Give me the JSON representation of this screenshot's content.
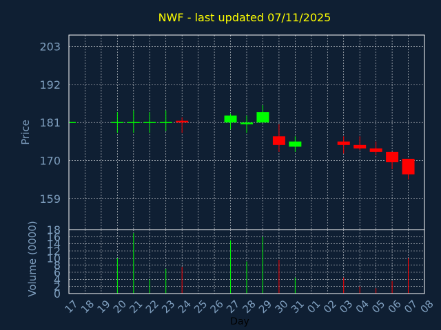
{
  "colors": {
    "background": "#0f1f33",
    "title": "#ffff00",
    "axis_text": "#7f9fbf",
    "grid": "#ffffff",
    "up": "#00ff00",
    "down": "#ff0000"
  },
  "chart_data": [
    {
      "type": "candlestick",
      "title": "NWF - last updated 07/11/2025",
      "ylabel": "Price",
      "ylim": [
        150,
        206.3
      ],
      "yticks": [
        159,
        170,
        181,
        192,
        203
      ],
      "grid": true,
      "x": [
        "17",
        "18",
        "19",
        "20",
        "21",
        "22",
        "23",
        "24",
        "25",
        "26",
        "27",
        "28",
        "29",
        "30",
        "31",
        "01",
        "02",
        "03",
        "04",
        "05",
        "06",
        "07",
        "08"
      ],
      "candles": [
        {
          "x": "17",
          "open": 181.0,
          "high": 181.0,
          "low": 181.0,
          "close": 181.0
        },
        {
          "x": "20",
          "open": 181.0,
          "high": 184.0,
          "low": 178.0,
          "close": 181.0
        },
        {
          "x": "21",
          "open": 181.0,
          "high": 184.5,
          "low": 178.0,
          "close": 181.0
        },
        {
          "x": "22",
          "open": 181.0,
          "high": 184.0,
          "low": 178.0,
          "close": 181.0
        },
        {
          "x": "23",
          "open": 181.0,
          "high": 184.5,
          "low": 178.5,
          "close": 181.0
        },
        {
          "x": "24",
          "open": 181.5,
          "high": 182.5,
          "low": 178.0,
          "close": 181.0
        },
        {
          "x": "27",
          "open": 181.0,
          "high": 183.5,
          "low": 179.0,
          "close": 183.0
        },
        {
          "x": "28",
          "open": 180.5,
          "high": 183.0,
          "low": 178.0,
          "close": 181.0
        },
        {
          "x": "29",
          "open": 181.0,
          "high": 186.0,
          "low": 181.0,
          "close": 184.0
        },
        {
          "x": "30",
          "open": 177.0,
          "high": 180.5,
          "low": 172.5,
          "close": 174.5
        },
        {
          "x": "31",
          "open": 174.0,
          "high": 177.0,
          "low": 172.5,
          "close": 175.5
        },
        {
          "x": "03",
          "open": 175.5,
          "high": 177.0,
          "low": 172.0,
          "close": 174.5
        },
        {
          "x": "04",
          "open": 174.5,
          "high": 177.0,
          "low": 173.0,
          "close": 173.5
        },
        {
          "x": "05",
          "open": 173.5,
          "high": 175.5,
          "low": 171.5,
          "close": 172.5
        },
        {
          "x": "06",
          "open": 172.5,
          "high": 172.5,
          "low": 167.5,
          "close": 169.5
        },
        {
          "x": "07",
          "open": 170.5,
          "high": 170.5,
          "low": 164.5,
          "close": 166.0
        }
      ]
    },
    {
      "type": "bar",
      "xlabel": "Day",
      "ylabel": "Volume (0000)",
      "ylim": [
        0,
        18
      ],
      "yticks": [
        0,
        2,
        4,
        6,
        8,
        10,
        12,
        14,
        16,
        18
      ],
      "grid": true,
      "x": [
        "17",
        "18",
        "19",
        "20",
        "21",
        "22",
        "23",
        "24",
        "25",
        "26",
        "27",
        "28",
        "29",
        "30",
        "31",
        "01",
        "02",
        "03",
        "04",
        "05",
        "06",
        "07",
        "08"
      ],
      "bars": [
        {
          "x": "20",
          "value": 10,
          "color": "up"
        },
        {
          "x": "21",
          "value": 17,
          "color": "up"
        },
        {
          "x": "22",
          "value": 4,
          "color": "up"
        },
        {
          "x": "23",
          "value": 7,
          "color": "up"
        },
        {
          "x": "24",
          "value": 7.5,
          "color": "down"
        },
        {
          "x": "27",
          "value": 15,
          "color": "up"
        },
        {
          "x": "28",
          "value": 9,
          "color": "up"
        },
        {
          "x": "29",
          "value": 16,
          "color": "up"
        },
        {
          "x": "30",
          "value": 9.5,
          "color": "down"
        },
        {
          "x": "31",
          "value": 4.5,
          "color": "up"
        },
        {
          "x": "03",
          "value": 4.5,
          "color": "down"
        },
        {
          "x": "04",
          "value": 2,
          "color": "down"
        },
        {
          "x": "05",
          "value": 1.5,
          "color": "down"
        },
        {
          "x": "06",
          "value": 3.5,
          "color": "down"
        },
        {
          "x": "07",
          "value": 10,
          "color": "down"
        }
      ]
    }
  ]
}
